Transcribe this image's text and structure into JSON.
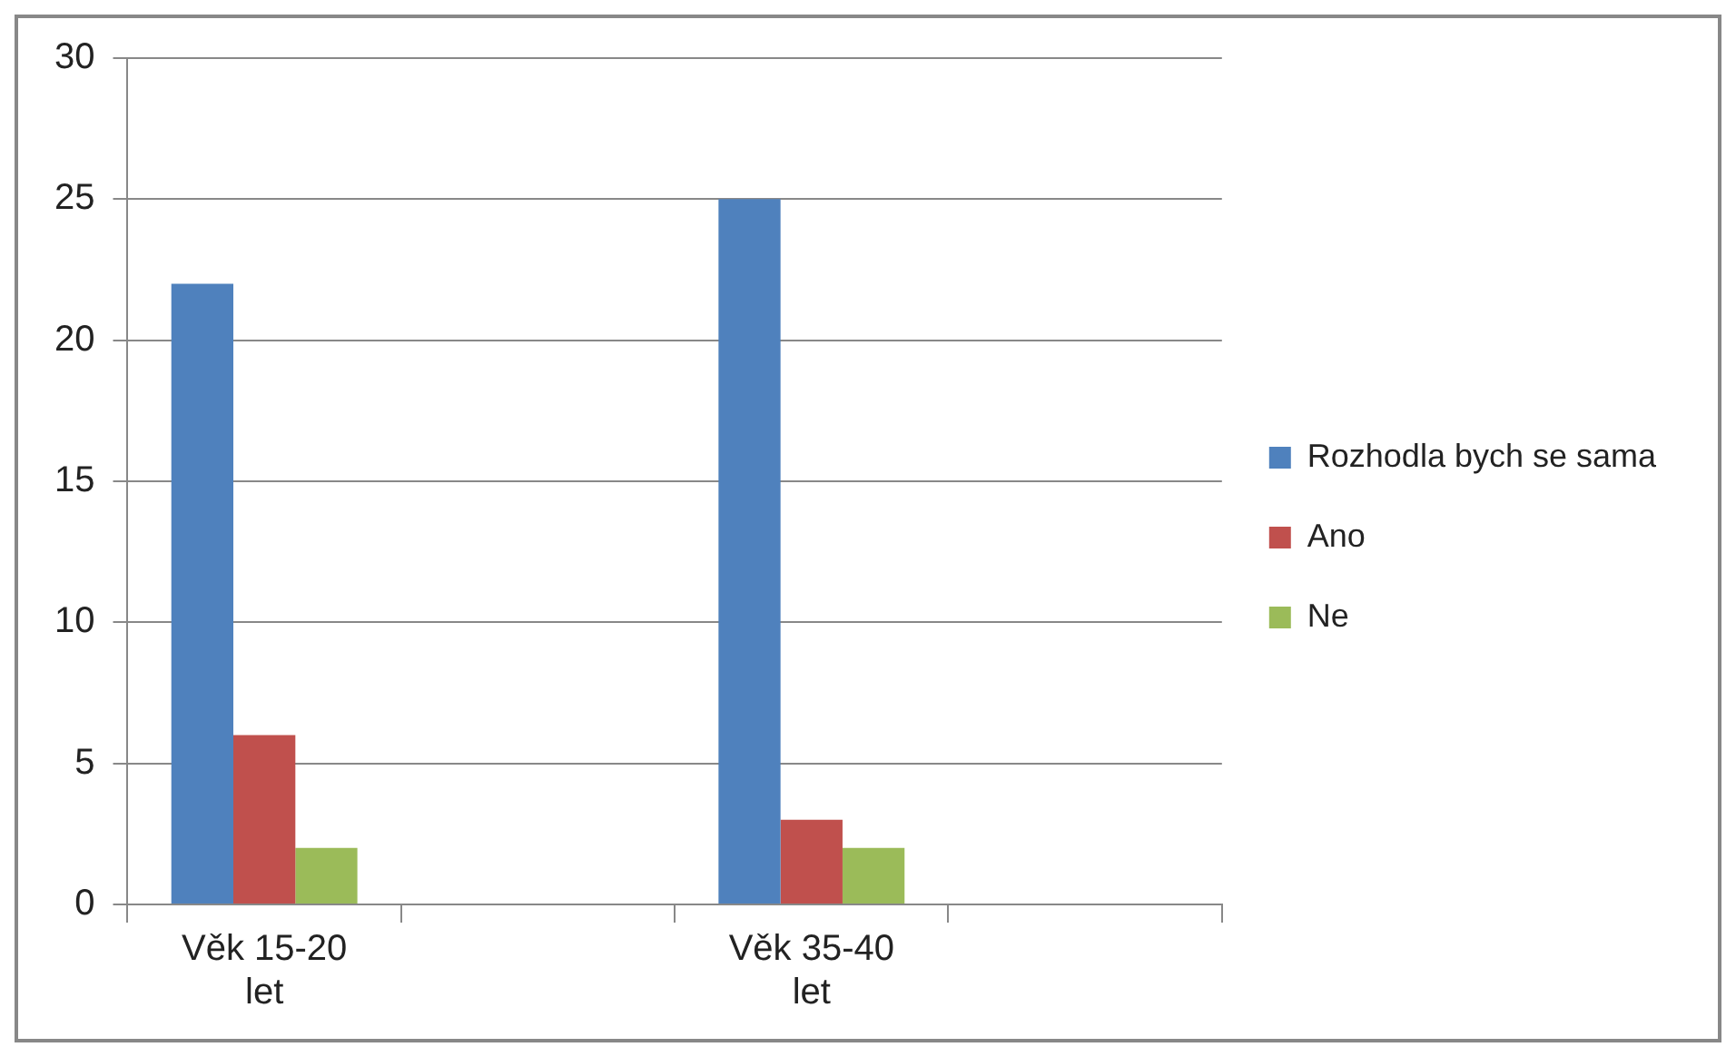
{
  "chart_data": {
    "type": "bar",
    "categories": [
      "Věk 15-20 let",
      null,
      "Věk 35-40 let",
      null
    ],
    "series": [
      {
        "name": "Rozhodla bych se sama",
        "color": "#4f81bd",
        "values": [
          22,
          null,
          25,
          null
        ]
      },
      {
        "name": "Ano",
        "color": "#c0504d",
        "values": [
          6,
          null,
          3,
          null
        ]
      },
      {
        "name": "Ne",
        "color": "#9bbb59",
        "values": [
          2,
          null,
          2,
          null
        ]
      }
    ],
    "ylim": [
      0,
      30
    ],
    "yticks": [
      0,
      5,
      10,
      15,
      20,
      25,
      30
    ],
    "grid": "y",
    "legend": "right"
  }
}
